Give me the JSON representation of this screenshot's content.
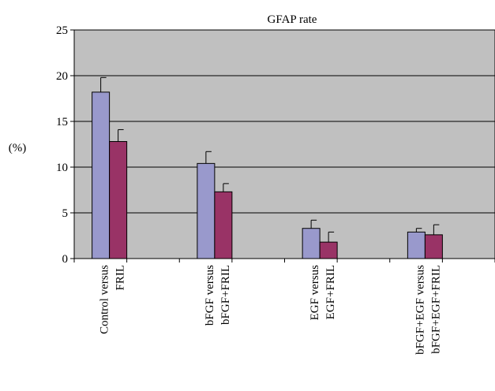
{
  "chart_data": {
    "type": "bar",
    "title": "GFAP rate",
    "ylabel": "(%)",
    "xlabel": "",
    "ylim": [
      0,
      25
    ],
    "yticks": [
      0,
      5,
      10,
      15,
      20,
      25
    ],
    "grid": true,
    "legend": "none",
    "categories": [
      [
        "Control versus",
        "FRIL"
      ],
      [
        "bFGF versus",
        "bFGF+FRIL"
      ],
      [
        "EGF versus",
        "EGF+FRIL"
      ],
      [
        "bFGF+EGF versus",
        "bFGF+EGF+FRIL"
      ]
    ],
    "series": [
      {
        "values": [
          18.2,
          10.4,
          3.3,
          2.9
        ],
        "errors": [
          1.6,
          1.3,
          0.9,
          0.4
        ],
        "color": "#9999cc"
      },
      {
        "values": [
          12.8,
          7.3,
          1.8,
          2.6
        ],
        "errors": [
          1.3,
          0.9,
          1.1,
          1.1
        ],
        "color": "#993366"
      }
    ],
    "colors": {
      "plot_background": "#c0c0c0",
      "gridline": "#000000"
    }
  }
}
